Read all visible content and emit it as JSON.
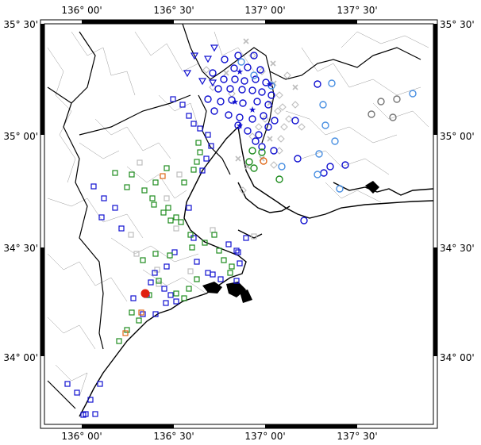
{
  "map": {
    "longitude_labels": [
      "136° 00'",
      "136° 30'",
      "137° 00'",
      "137° 30'"
    ],
    "latitude_labels": [
      "35° 30'",
      "35° 00'",
      "34° 30'",
      "34° 00'"
    ],
    "extent": {
      "lon_min": 135.8,
      "lon_max": 137.85,
      "lat_min": 33.72,
      "lat_max": 35.5
    },
    "colors": {
      "blue": "#1010d0",
      "light_blue": "#4a90e2",
      "green": "#1e8c1e",
      "orange": "#e06a1a",
      "gray": "#777777",
      "light_gray": "#bdbdbd",
      "red": "#e02010"
    },
    "marker_types": [
      "circle",
      "square",
      "triangle-down",
      "star",
      "cross",
      "diamond"
    ]
  }
}
